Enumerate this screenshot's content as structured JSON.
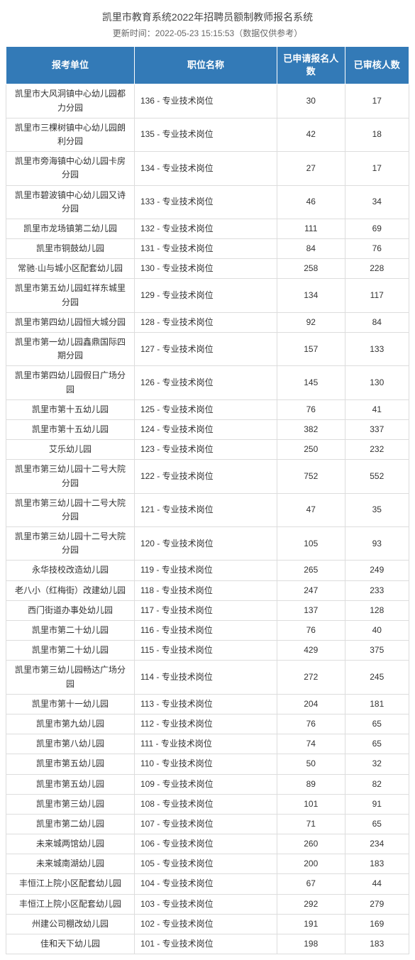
{
  "header": {
    "title": "凯里市教育系统2022年招聘员额制教师报名系统",
    "subtitle": "更新时间：2022-05-23 15:15:53（数据仅供参考）"
  },
  "table": {
    "columns": [
      "报考单位",
      "职位名称",
      "已申请报名人数",
      "已审核人数"
    ],
    "header_bg": "#337ab7",
    "header_color": "#ffffff",
    "border_color": "#dddddd",
    "rows": [
      [
        "凯里市大风洞镇中心幼儿园都力分园",
        "136 - 专业技术岗位",
        30,
        17
      ],
      [
        "凯里市三棵树镇中心幼儿园朗利分园",
        "135 - 专业技术岗位",
        42,
        18
      ],
      [
        "凯里市旁海镇中心幼儿园卡房分园",
        "134 - 专业技术岗位",
        27,
        17
      ],
      [
        "凯里市碧波镇中心幼儿园又诗分园",
        "133 - 专业技术岗位",
        46,
        34
      ],
      [
        "凯里市龙场镇第二幼儿园",
        "132 - 专业技术岗位",
        111,
        69
      ],
      [
        "凯里市铜鼓幼儿园",
        "131 - 专业技术岗位",
        84,
        76
      ],
      [
        "常驰·山与城小区配套幼儿园",
        "130 - 专业技术岗位",
        258,
        228
      ],
      [
        "凯里市第五幼儿园虹祥东城里分园",
        "129 - 专业技术岗位",
        134,
        117
      ],
      [
        "凯里市第四幼儿园恒大城分园",
        "128 - 专业技术岗位",
        92,
        84
      ],
      [
        "凯里市第一幼儿园鑫鼎国际四期分园",
        "127 - 专业技术岗位",
        157,
        133
      ],
      [
        "凯里市第四幼儿园假日广场分园",
        "126 - 专业技术岗位",
        145,
        130
      ],
      [
        "凯里市第十五幼儿园",
        "125 - 专业技术岗位",
        76,
        41
      ],
      [
        "凯里市第十五幼儿园",
        "124 - 专业技术岗位",
        382,
        337
      ],
      [
        "艾乐幼儿园",
        "123 - 专业技术岗位",
        250,
        232
      ],
      [
        "凯里市第三幼儿园十二号大院分园",
        "122 - 专业技术岗位",
        752,
        552
      ],
      [
        "凯里市第三幼儿园十二号大院分园",
        "121 - 专业技术岗位",
        47,
        35
      ],
      [
        "凯里市第三幼儿园十二号大院分园",
        "120 - 专业技术岗位",
        105,
        93
      ],
      [
        "永华技校改造幼儿园",
        "119 - 专业技术岗位",
        265,
        249
      ],
      [
        "老八小（红梅街）改建幼儿园",
        "118 - 专业技术岗位",
        247,
        233
      ],
      [
        "西门街道办事处幼儿园",
        "117 - 专业技术岗位",
        137,
        128
      ],
      [
        "凯里市第二十幼儿园",
        "116 - 专业技术岗位",
        76,
        40
      ],
      [
        "凯里市第二十幼儿园",
        "115 - 专业技术岗位",
        429,
        375
      ],
      [
        "凯里市第三幼儿园畅达广场分园",
        "114 - 专业技术岗位",
        272,
        245
      ],
      [
        "凯里市第十一幼儿园",
        "113 - 专业技术岗位",
        204,
        181
      ],
      [
        "凯里市第九幼儿园",
        "112 - 专业技术岗位",
        76,
        65
      ],
      [
        "凯里市第八幼儿园",
        "111 - 专业技术岗位",
        74,
        65
      ],
      [
        "凯里市第五幼儿园",
        "110 - 专业技术岗位",
        50,
        32
      ],
      [
        "凯里市第五幼儿园",
        "109 - 专业技术岗位",
        89,
        82
      ],
      [
        "凯里市第三幼儿园",
        "108 - 专业技术岗位",
        101,
        91
      ],
      [
        "凯里市第二幼儿园",
        "107 - 专业技术岗位",
        71,
        65
      ],
      [
        "未来城两馆幼儿园",
        "106 - 专业技术岗位",
        260,
        234
      ],
      [
        "未来城南湖幼儿园",
        "105 - 专业技术岗位",
        200,
        183
      ],
      [
        "丰恒江上院小区配套幼儿园",
        "104 - 专业技术岗位",
        67,
        44
      ],
      [
        "丰恒江上院小区配套幼儿园",
        "103 - 专业技术岗位",
        292,
        279
      ],
      [
        "州建公司棚改幼儿园",
        "102 - 专业技术岗位",
        191,
        169
      ],
      [
        "佳和天下幼儿园",
        "101 - 专业技术岗位",
        198,
        183
      ]
    ]
  }
}
